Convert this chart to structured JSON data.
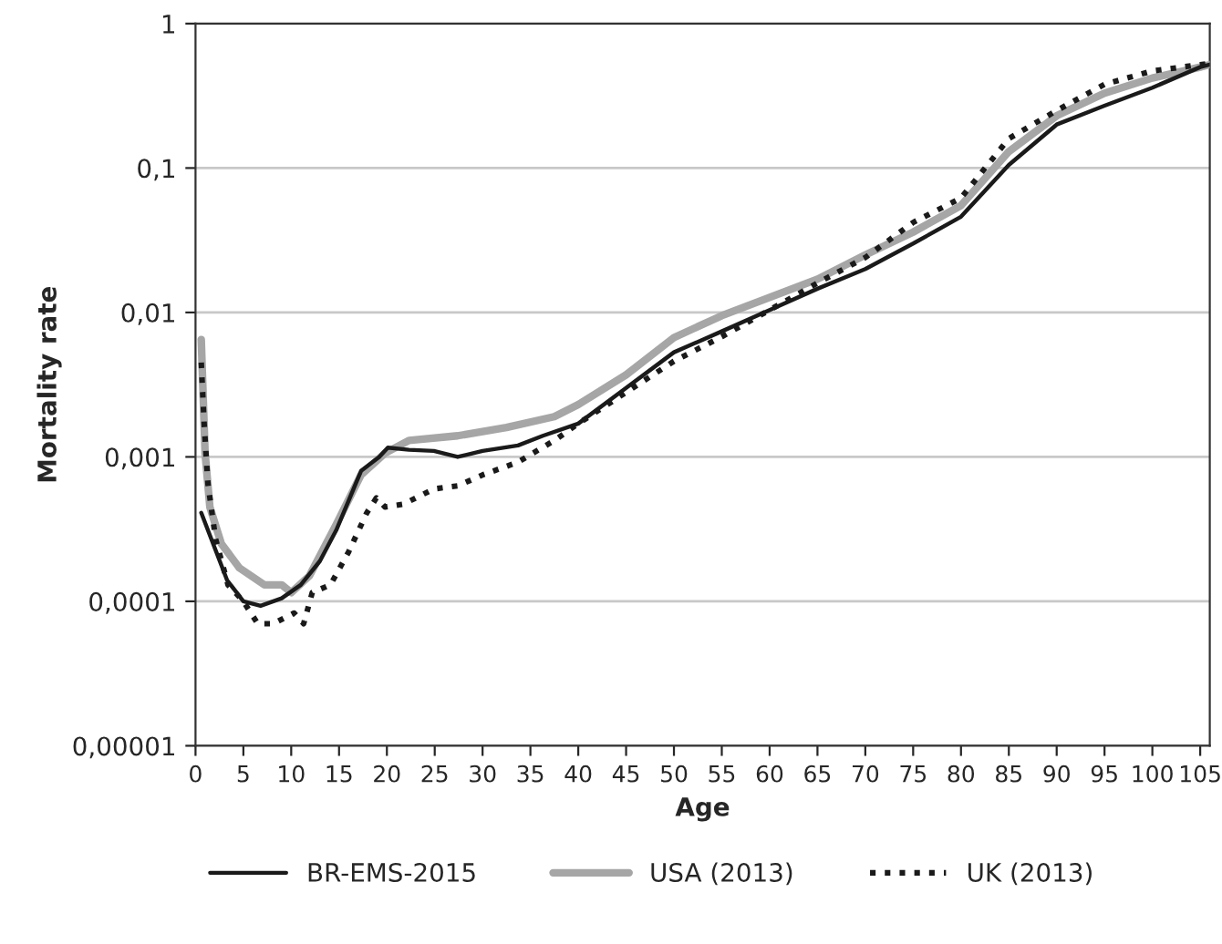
{
  "chart_data": {
    "type": "line",
    "xlabel": "Age",
    "ylabel": "Mortality rate",
    "log": "y",
    "grid": "y",
    "legend": "bottom",
    "xlim": [
      0,
      106
    ],
    "xticks": [
      0,
      5,
      10,
      15,
      20,
      25,
      30,
      35,
      40,
      45,
      50,
      55,
      60,
      65,
      70,
      75,
      80,
      85,
      90,
      95,
      100,
      105
    ],
    "ylim": [
      1e-05,
      1
    ],
    "yticks": [
      {
        "value": 1e-05,
        "label": "0,00001"
      },
      {
        "value": 0.0001,
        "label": "0,0001"
      },
      {
        "value": 0.001,
        "label": "0,001"
      },
      {
        "value": 0.01,
        "label": "0,01"
      },
      {
        "value": 0.1,
        "label": "0,1"
      },
      {
        "value": 1,
        "label": "1"
      }
    ],
    "series": [
      {
        "name": "BR-EMS-2015",
        "color": "#1a1a1a",
        "line_style": "solid",
        "x": [
          0.6,
          3.3,
          5,
          6.8,
          9,
          11,
          13,
          14.7,
          17.3,
          19.2,
          20.1,
          22.3,
          24.9,
          27.4,
          30,
          33.7,
          36.3,
          40,
          45,
          50,
          55,
          60,
          65,
          70,
          75,
          80,
          85,
          90,
          95,
          100,
          105,
          106
        ],
        "values": [
          0.00041,
          0.00014,
          0.0001,
          9.3e-05,
          0.000105,
          0.00013,
          0.00019,
          0.00031,
          0.0008,
          0.001,
          0.00116,
          0.00112,
          0.0011,
          0.001,
          0.0011,
          0.0012,
          0.0014,
          0.0017,
          0.003,
          0.0053,
          0.0074,
          0.0104,
          0.0146,
          0.02,
          0.03,
          0.046,
          0.105,
          0.2,
          0.27,
          0.36,
          0.5,
          0.52
        ]
      },
      {
        "name": "USA (2013)",
        "color": "#a6a6a6",
        "line_style": "solid",
        "x": [
          0.6,
          1,
          1.5,
          2.7,
          4.6,
          7.2,
          9,
          10,
          11.9,
          14.7,
          17.3,
          19.8,
          22.3,
          27.4,
          32.5,
          37.5,
          40,
          45,
          50,
          55,
          60,
          65,
          70,
          75,
          80,
          85,
          90,
          95,
          100,
          105,
          106
        ],
        "values": [
          0.0065,
          0.00106,
          0.00045,
          0.00025,
          0.00017,
          0.00013,
          0.00013,
          0.000115,
          0.00015,
          0.00034,
          0.00075,
          0.00106,
          0.0013,
          0.0014,
          0.0016,
          0.0019,
          0.0023,
          0.0037,
          0.0067,
          0.0095,
          0.0127,
          0.017,
          0.025,
          0.036,
          0.055,
          0.13,
          0.23,
          0.33,
          0.42,
          0.5,
          0.52
        ]
      },
      {
        "name": "UK (2013)",
        "color": "#1a1a1a",
        "line_style": "dotted",
        "x": [
          0.6,
          0.9,
          1.3,
          2.1,
          3.4,
          5,
          6.5,
          8.1,
          10.3,
          11.3,
          12.2,
          14.1,
          16,
          17.9,
          18.9,
          19.8,
          21.7,
          24.9,
          27.4,
          30,
          33.7,
          37.5,
          40,
          45,
          50,
          55,
          60,
          65,
          70,
          75,
          80,
          85,
          90,
          95,
          100,
          105,
          106
        ],
        "values": [
          0.0045,
          0.0017,
          0.00065,
          0.00027,
          0.00013,
          0.0001,
          7e-05,
          7e-05,
          8.3e-05,
          7e-05,
          0.000115,
          0.00013,
          0.00022,
          0.00041,
          0.00052,
          0.00045,
          0.00047,
          0.0006,
          0.00063,
          0.00075,
          0.00092,
          0.0013,
          0.0017,
          0.0028,
          0.0046,
          0.0068,
          0.0104,
          0.016,
          0.024,
          0.042,
          0.062,
          0.16,
          0.25,
          0.38,
          0.47,
          0.52,
          0.53
        ]
      }
    ]
  }
}
